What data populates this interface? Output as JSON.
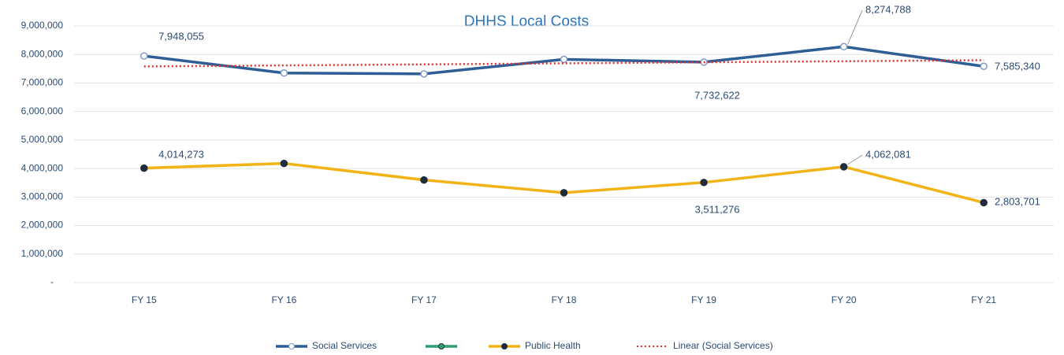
{
  "chart_data": {
    "type": "line",
    "title": "DHHS Local Costs",
    "categories": [
      "FY 15",
      "FY 16",
      "FY 17",
      "FY 18",
      "FY 19",
      "FY 20",
      "FY 21"
    ],
    "series": [
      {
        "name": "Social Services",
        "color": "#2e5e96",
        "values": [
          7948055,
          7350000,
          7320000,
          7830000,
          7732622,
          8274788,
          7585340
        ],
        "value_labels": [
          "7,948,055",
          null,
          null,
          null,
          "7,732,622",
          "8,274,788",
          "7,585,340"
        ]
      },
      {
        "name": null,
        "color": "#2e9e6e",
        "values": [
          null,
          null,
          null,
          null,
          null,
          null,
          null
        ]
      },
      {
        "name": "Public Health",
        "color": "#f2b316",
        "values": [
          4014273,
          4180000,
          3600000,
          3150000,
          3511276,
          4062081,
          2803701
        ],
        "value_labels": [
          "4,014,273",
          null,
          null,
          null,
          "3,511,276",
          "4,062,081",
          "2,803,701"
        ]
      },
      {
        "name": "Linear (Social Services)",
        "color": "#e03030",
        "dashed": true,
        "values": [
          7580000,
          7617000,
          7653000,
          7690000,
          7727000,
          7763000,
          7800000
        ]
      }
    ],
    "ylim": [
      0,
      9000000
    ],
    "yticks": [
      {
        "value": 0,
        "label": "-"
      },
      {
        "value": 1000000,
        "label": "1,000,000"
      },
      {
        "value": 2000000,
        "label": "2,000,000"
      },
      {
        "value": 3000000,
        "label": "3,000,000"
      },
      {
        "value": 4000000,
        "label": "4,000,000"
      },
      {
        "value": 5000000,
        "label": "5,000,000"
      },
      {
        "value": 6000000,
        "label": "6,000,000"
      },
      {
        "value": 7000000,
        "label": "7,000,000"
      },
      {
        "value": 8000000,
        "label": "8,000,000"
      },
      {
        "value": 9000000,
        "label": "9,000,000"
      }
    ],
    "grid": true,
    "legend": "bottom"
  }
}
